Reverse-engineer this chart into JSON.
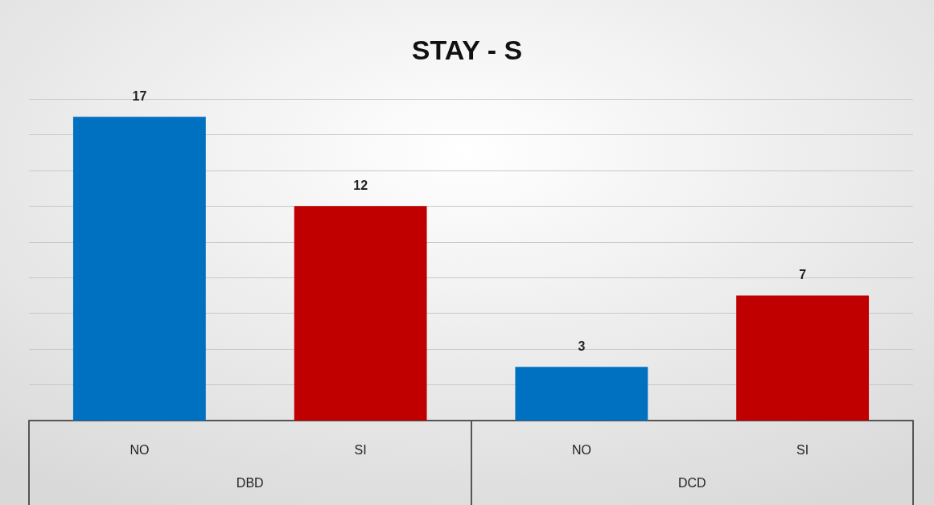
{
  "chart_data": {
    "type": "bar",
    "title": "STAY - S",
    "categories": [
      "NO",
      "SI",
      "NO",
      "SI"
    ],
    "values": [
      17,
      12,
      3,
      7
    ],
    "colors": [
      "#0070c0",
      "#c00000",
      "#0070c0",
      "#c00000"
    ],
    "ylim": [
      0,
      18
    ],
    "yticks": [
      {
        "value": 0,
        "label": null
      },
      {
        "value": 2,
        "label": null
      },
      {
        "value": 4,
        "label": null
      },
      {
        "value": 6,
        "label": null
      },
      {
        "value": 8,
        "label": null
      },
      {
        "value": 10,
        "label": null
      },
      {
        "value": 12,
        "label": null
      },
      {
        "value": 14,
        "label": null
      },
      {
        "value": 16,
        "label": null
      },
      {
        "value": 18,
        "label": null
      }
    ],
    "grid": "y",
    "data_labels": true,
    "tick_labels": "x",
    "annotations": [
      "DBD",
      "DCD"
    ]
  }
}
